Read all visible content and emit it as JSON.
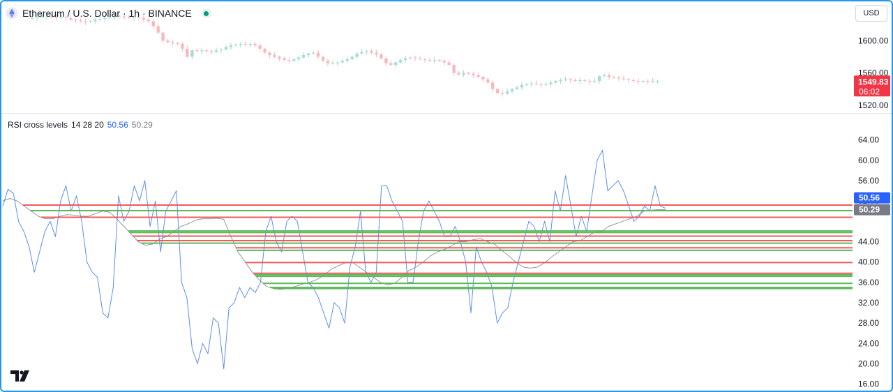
{
  "header": {
    "symbol_title": "Ethereum / U.S. Dollar · 1h · BINANCE",
    "currency": "USD",
    "icon": "ethereum-icon"
  },
  "price_scale": {
    "ticks": [
      "1600.00",
      "1560.00",
      "1520.00"
    ],
    "last_price": "1549.83",
    "countdown": "06:02",
    "badge_color": "#f23645"
  },
  "indicator": {
    "name": "RSI cross levels",
    "params": "14 28 20",
    "value_rsi": "50.56",
    "value_ma": "50.29",
    "rsi_color": "#5b8def",
    "ma_color": "#9598a1"
  },
  "chart_data": [
    {
      "type": "candlestick",
      "title": "Ethereum / U.S. Dollar · 1h · BINANCE",
      "y_ticks": [
        1600,
        1560,
        1520
      ],
      "ylim": [
        1512,
        1640
      ],
      "close_series": [
        1628,
        1629,
        1630,
        1630,
        1629,
        1628,
        1629,
        1628,
        1626,
        1625,
        1624,
        1623,
        1624,
        1626,
        1627,
        1628,
        1629,
        1630,
        1630,
        1629,
        1628,
        1629,
        1628,
        1626,
        1624,
        1618,
        1610,
        1600,
        1598,
        1597,
        1596,
        1590,
        1580,
        1588,
        1587,
        1588,
        1587,
        1586,
        1588,
        1589,
        1592,
        1594,
        1595,
        1596,
        1595,
        1596,
        1594,
        1590,
        1585,
        1582,
        1580,
        1578,
        1576,
        1575,
        1577,
        1579,
        1582,
        1584,
        1585,
        1580,
        1575,
        1572,
        1572,
        1573,
        1575,
        1577,
        1580,
        1584,
        1586,
        1587,
        1585,
        1583,
        1578,
        1572,
        1570,
        1573,
        1576,
        1578,
        1579,
        1578,
        1577,
        1576,
        1575,
        1576,
        1575,
        1573,
        1570,
        1560,
        1558,
        1560,
        1559,
        1557,
        1555,
        1552,
        1548,
        1540,
        1535,
        1534,
        1537,
        1540,
        1542,
        1545,
        1546,
        1547,
        1546,
        1545,
        1546,
        1548,
        1550,
        1551,
        1552,
        1551,
        1550,
        1551,
        1550,
        1549,
        1550,
        1556,
        1557,
        1555,
        1554,
        1553,
        1552,
        1551,
        1550,
        1549,
        1550,
        1549,
        1550,
        1550
      ],
      "last_price": 1549.83
    },
    {
      "type": "line",
      "title": "RSI cross levels",
      "params": "14 28 20",
      "y_ticks": [
        64,
        60,
        56,
        52,
        44,
        40,
        36,
        32,
        28,
        24,
        20,
        16
      ],
      "ylim": [
        15,
        66
      ],
      "series": [
        {
          "values": [
            51,
            54.3,
            53.5,
            48,
            46,
            43,
            38,
            42,
            46,
            48,
            45,
            52,
            55,
            50,
            53,
            48,
            40,
            38,
            37,
            30,
            29,
            35,
            53,
            48,
            50,
            55,
            52,
            56,
            47,
            52,
            42,
            50,
            52,
            54,
            36,
            33,
            23,
            20,
            24,
            22,
            29,
            28,
            19,
            31,
            32,
            35,
            33,
            35,
            34,
            36,
            46,
            49,
            44,
            42,
            48,
            49,
            48,
            42,
            36,
            35,
            33,
            30,
            27,
            32,
            31,
            28,
            39,
            43,
            50,
            38,
            36,
            38,
            55,
            55,
            52,
            50,
            48,
            36,
            36,
            44,
            50,
            52,
            50,
            48,
            45,
            45,
            47,
            44,
            40,
            30,
            43,
            40,
            38,
            35,
            28,
            30,
            31,
            36,
            40,
            44,
            48,
            47,
            44,
            48,
            44,
            54,
            50,
            57,
            51,
            45,
            49,
            46,
            53,
            60,
            62,
            54,
            55,
            56,
            54,
            51,
            48,
            49,
            51,
            50,
            55,
            51,
            50.56
          ]
        },
        {
          "values": [
            52,
            52.5,
            52,
            51,
            50,
            49,
            48.5,
            48.5,
            49,
            49.3,
            49.2,
            49,
            49,
            49.5,
            50,
            49.8,
            48.5,
            47,
            45.5,
            44,
            43.3,
            43.5,
            44.5,
            45,
            46,
            47,
            47.5,
            48.2,
            48.5,
            48.5,
            48.6,
            48.4,
            45,
            42,
            40,
            38,
            36.5,
            35.2,
            34.8,
            34.6,
            34.8,
            35.2,
            35.6,
            36,
            36.5,
            37.3,
            38.5,
            39.2,
            39.8,
            40,
            39,
            38,
            37,
            36,
            35.5,
            35.8,
            37,
            38.3,
            39,
            40,
            41.2,
            42,
            42.5,
            43.2,
            44,
            44,
            44.4,
            44.6,
            44,
            43.5,
            42.3,
            41.2,
            40,
            39,
            38.8,
            39,
            39.8,
            41,
            42,
            43,
            44,
            44.2,
            45,
            45.8,
            46,
            47,
            47.5,
            48,
            48.5,
            49,
            50,
            50.2,
            50.3,
            50.29
          ]
        }
      ],
      "horizontal_levels": {
        "red": [
          51.2,
          48.8,
          45.1,
          44.2,
          42.8,
          39.9,
          37.8
        ],
        "green": [
          50.1,
          46.1,
          45.8,
          43.7,
          42.3,
          37.5,
          37.2,
          35.8,
          35.0,
          34.8
        ]
      }
    }
  ]
}
